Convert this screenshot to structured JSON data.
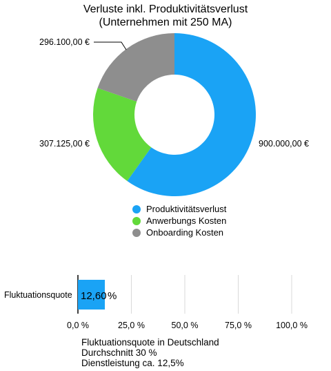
{
  "chart_data": [
    {
      "type": "pie",
      "title_line1": "Verluste inkl. Produktivitätsverlust",
      "title_line2": "(Unternehmen mit 250 MA)",
      "slices": [
        {
          "name": "Produktivitätsverlust",
          "value": 900000.0,
          "label": "900.000,00 €",
          "color": "#1aa3f5"
        },
        {
          "name": "Anwerbungs Kosten",
          "value": 307125.0,
          "label": "307.125,00 €",
          "color": "#62d93a"
        },
        {
          "name": "Onboarding Kosten",
          "value": 296100.0,
          "label": "296.100,00 €",
          "color": "#8e8e8e"
        }
      ],
      "legend_position": "bottom"
    },
    {
      "type": "bar",
      "orientation": "horizontal",
      "categories": [
        "Fluktuationsquote"
      ],
      "values": [
        12.6
      ],
      "value_label": "12,60",
      "value_unit": "%",
      "color": "#1aa3f5",
      "xlim": [
        0,
        100
      ],
      "xticks": [
        "0,0 %",
        "25,0 %",
        "50,0 %",
        "75,0 %",
        "100,0 %"
      ],
      "grid": true
    }
  ],
  "note": {
    "line1": "Fluktuationsquote in Deutschland",
    "line2": "Durchschnitt 30 %",
    "line3": "Dienstleistung ca. 12,5%"
  }
}
